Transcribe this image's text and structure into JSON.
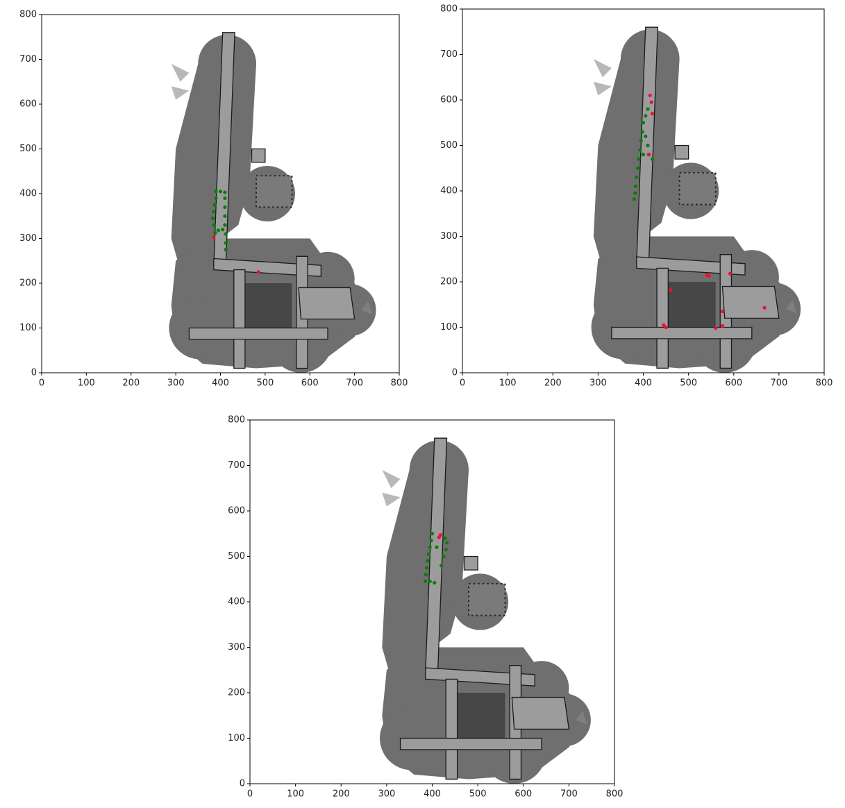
{
  "chart_data": [
    {
      "type": "scatter",
      "xlim": [
        0,
        800
      ],
      "ylim": [
        0,
        800
      ],
      "xticks": [
        0,
        100,
        200,
        300,
        400,
        500,
        600,
        700,
        800
      ],
      "yticks": [
        0,
        100,
        200,
        300,
        400,
        500,
        600,
        700,
        800
      ],
      "series": [
        {
          "color": "#0a7d0a",
          "x": [
            390,
            400,
            410,
            410,
            410,
            410,
            410,
            412,
            412,
            412,
            405,
            395,
            388,
            385,
            383,
            385,
            387,
            390
          ],
          "y": [
            405,
            405,
            403,
            390,
            370,
            350,
            330,
            310,
            290,
            275,
            320,
            318,
            312,
            330,
            345,
            360,
            375,
            390
          ]
        },
        {
          "color": "#ee1133",
          "x": [
            385,
            485
          ],
          "y": [
            303,
            225
          ]
        }
      ]
    },
    {
      "type": "scatter",
      "xlim": [
        0,
        800
      ],
      "ylim": [
        0,
        800
      ],
      "xticks": [
        0,
        100,
        200,
        300,
        400,
        500,
        600,
        700,
        800
      ],
      "yticks": [
        0,
        100,
        200,
        300,
        400,
        500,
        600,
        700,
        800
      ],
      "series": [
        {
          "color": "#0a7d0a",
          "x": [
            410,
            405,
            400,
            398,
            395,
            393,
            390,
            388,
            385,
            383,
            382,
            380,
            405,
            410,
            412,
            420,
            400
          ],
          "y": [
            580,
            565,
            550,
            530,
            510,
            490,
            470,
            450,
            430,
            410,
            395,
            382,
            520,
            500,
            480,
            470,
            480
          ]
        },
        {
          "color": "#ee1133",
          "x": [
            415,
            418,
            420,
            413,
            540,
            545,
            592,
            460,
            445,
            450,
            668,
            575,
            560,
            575
          ],
          "y": [
            610,
            595,
            570,
            480,
            215,
            213,
            218,
            182,
            105,
            100,
            143,
            135,
            98,
            103
          ]
        }
      ]
    },
    {
      "type": "scatter",
      "xlim": [
        0,
        800
      ],
      "ylim": [
        0,
        800
      ],
      "xticks": [
        0,
        100,
        200,
        300,
        400,
        500,
        600,
        700,
        800
      ],
      "yticks": [
        0,
        100,
        200,
        300,
        400,
        500,
        600,
        700,
        800
      ],
      "series": [
        {
          "color": "#0a7d0a",
          "x": [
            400,
            398,
            395,
            392,
            390,
            388,
            386,
            385,
            395,
            405,
            420,
            425,
            430,
            432,
            428,
            410
          ],
          "y": [
            550,
            535,
            520,
            505,
            490,
            475,
            460,
            445,
            445,
            442,
            480,
            500,
            515,
            530,
            540,
            520
          ]
        },
        {
          "color": "#ee1133",
          "x": [
            418,
            415
          ],
          "y": [
            547,
            542
          ]
        }
      ]
    }
  ]
}
